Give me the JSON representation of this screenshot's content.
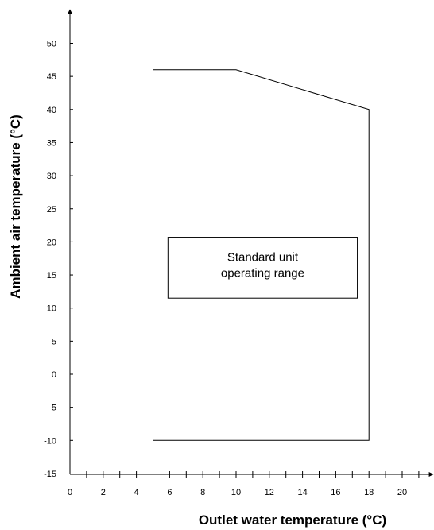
{
  "chart_data": {
    "type": "area",
    "xlabel": "Outlet water temperature (°C)",
    "ylabel": "Ambient air temperature (°C)",
    "xlim": [
      0,
      22
    ],
    "ylim": [
      -15,
      55
    ],
    "x_ticks": [
      0,
      2,
      4,
      6,
      8,
      10,
      12,
      14,
      16,
      18,
      20
    ],
    "x_minor_ticks": [
      1,
      3,
      5,
      7,
      9,
      11,
      13,
      15,
      17,
      19,
      21
    ],
    "y_ticks": [
      -15,
      -10,
      -5,
      0,
      5,
      10,
      15,
      20,
      25,
      30,
      35,
      40,
      45,
      50
    ],
    "series": [
      {
        "name": "",
        "polygon": [
          {
            "x": 5,
            "y": -10
          },
          {
            "x": 5,
            "y": 46
          },
          {
            "x": 10,
            "y": 46
          },
          {
            "x": 18,
            "y": 40
          },
          {
            "x": 18,
            "y": -10
          }
        ]
      }
    ],
    "annotation": {
      "lines": [
        "Standard unit",
        "operating range"
      ],
      "x_range": [
        5.9,
        17.3
      ],
      "y_range": [
        11.5,
        20.7
      ]
    },
    "grid": false
  }
}
